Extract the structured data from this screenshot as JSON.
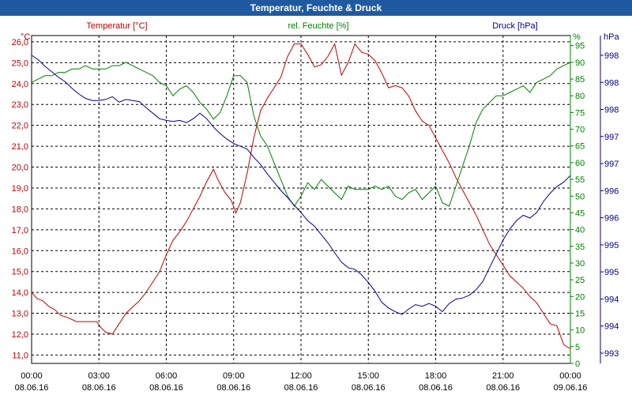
{
  "window": {
    "title": "Temperatur, Feuchte & Druck"
  },
  "colors": {
    "temperature": "#c00000",
    "humidity": "#008000",
    "pressure": "#000090",
    "titlebar": "#1f5aa0"
  },
  "chart_data": {
    "type": "line",
    "title": "Temperatur, Feuchte & Druck",
    "x_ticks": [
      {
        "time": "00:00",
        "date": "08.06.16"
      },
      {
        "time": "03:00",
        "date": "08.06.16"
      },
      {
        "time": "06:00",
        "date": "08.06.16"
      },
      {
        "time": "09:00",
        "date": "08.06.16"
      },
      {
        "time": "12:00",
        "date": "08.06.16"
      },
      {
        "time": "15:00",
        "date": "08.06.16"
      },
      {
        "time": "18:00",
        "date": "08.06.16"
      },
      {
        "time": "21:00",
        "date": "08.06.16"
      },
      {
        "time": "00:00",
        "date": "09.06.16"
      }
    ],
    "xlim": [
      0,
      24
    ],
    "axes": {
      "temperature": {
        "label": "Temperatur [°C]",
        "unit": "°C",
        "ylim": [
          10.6,
          26.3
        ],
        "ticks": [
          "11,0",
          "12,0",
          "13,0",
          "14,0",
          "15,0",
          "16,0",
          "17,0",
          "18,0",
          "19,0",
          "20,0",
          "21,0",
          "22,0",
          "23,0",
          "24,0",
          "25,0",
          "26,0"
        ]
      },
      "humidity": {
        "label": "rel. Feuchte [%]",
        "unit": "%",
        "ylim": [
          0,
          98
        ],
        "ticks": [
          "0",
          "5",
          "10",
          "15",
          "20",
          "25",
          "30",
          "35",
          "40",
          "45",
          "50",
          "55",
          "60",
          "65",
          "70",
          "75",
          "80",
          "85",
          "90",
          "95"
        ]
      },
      "pressure": {
        "label": "Druck [hPa]",
        "unit": "hPa",
        "ticks": [
          "993",
          "994",
          "994",
          "995",
          "995",
          "996",
          "996",
          "997",
          "997",
          "998",
          "998",
          "998"
        ]
      }
    },
    "series": [
      {
        "name": "Temperatur",
        "axis": "temperature",
        "x": [
          0,
          0.25,
          0.5,
          0.8,
          1.0,
          1.3,
          1.6,
          2.0,
          2.3,
          2.6,
          2.9,
          3.1,
          3.3,
          3.6,
          3.9,
          4.2,
          4.5,
          4.8,
          5.1,
          5.4,
          5.7,
          6.0,
          6.3,
          6.6,
          6.9,
          7.2,
          7.5,
          7.8,
          8.1,
          8.3,
          8.6,
          8.9,
          9.1,
          9.3,
          9.6,
          9.9,
          10.2,
          10.5,
          10.8,
          11.1,
          11.4,
          11.7,
          12.0,
          12.3,
          12.6,
          12.9,
          13.2,
          13.5,
          13.8,
          14.1,
          14.4,
          14.7,
          15.0,
          15.3,
          15.6,
          15.9,
          16.2,
          16.5,
          16.8,
          17.1,
          17.4,
          17.7,
          18.0,
          18.3,
          18.6,
          18.9,
          19.2,
          19.5,
          19.8,
          20.1,
          20.4,
          20.7,
          21.0,
          21.3,
          21.6,
          21.9,
          22.2,
          22.5,
          22.8,
          23.1,
          23.4,
          23.7,
          24.0
        ],
        "values": [
          14.0,
          13.7,
          13.6,
          13.3,
          13.2,
          12.9,
          12.8,
          12.6,
          12.6,
          12.6,
          12.6,
          12.3,
          12.1,
          12.0,
          12.5,
          13.0,
          13.3,
          13.6,
          14.0,
          14.5,
          15.0,
          15.8,
          16.5,
          16.9,
          17.4,
          18.0,
          18.6,
          19.3,
          19.9,
          19.4,
          18.8,
          18.4,
          17.8,
          18.3,
          19.7,
          21.4,
          22.7,
          23.3,
          23.8,
          24.3,
          25.3,
          25.9,
          25.9,
          25.4,
          24.8,
          24.9,
          25.3,
          25.9,
          24.4,
          25.0,
          25.9,
          25.5,
          25.4,
          25.1,
          24.5,
          23.8,
          23.9,
          23.8,
          23.4,
          22.7,
          22.2,
          22.0,
          21.4,
          20.8,
          20.2,
          19.5,
          18.9,
          18.3,
          17.7,
          17.0,
          16.3,
          15.8,
          15.3,
          14.8,
          14.5,
          14.2,
          13.8,
          13.5,
          13.0,
          12.5,
          12.4,
          11.5,
          11.3
        ]
      },
      {
        "name": "rel. Feuchte",
        "axis": "humidity",
        "x": [
          0,
          0.3,
          0.6,
          0.9,
          1.2,
          1.5,
          1.8,
          2.1,
          2.4,
          2.7,
          3.0,
          3.3,
          3.6,
          3.9,
          4.2,
          4.5,
          4.8,
          5.1,
          5.4,
          5.7,
          6.0,
          6.3,
          6.6,
          6.9,
          7.2,
          7.5,
          7.8,
          8.1,
          8.4,
          8.7,
          9.0,
          9.3,
          9.6,
          9.9,
          10.2,
          10.5,
          10.8,
          11.1,
          11.4,
          11.7,
          12.0,
          12.3,
          12.6,
          12.9,
          13.2,
          13.5,
          13.8,
          14.1,
          14.4,
          14.7,
          15.0,
          15.3,
          15.6,
          15.9,
          16.2,
          16.5,
          16.8,
          17.1,
          17.4,
          17.7,
          18.0,
          18.3,
          18.6,
          18.9,
          19.2,
          19.5,
          19.8,
          20.1,
          20.4,
          20.7,
          21.0,
          21.3,
          21.6,
          21.9,
          22.2,
          22.5,
          22.8,
          23.1,
          23.4,
          23.7,
          24.0
        ],
        "values": [
          84,
          85,
          86,
          86,
          87,
          87,
          88,
          88,
          89,
          88,
          88,
          88,
          89,
          89,
          90,
          89,
          88,
          87,
          86,
          84,
          83,
          80,
          82,
          83,
          81,
          78,
          76,
          73,
          75,
          80,
          86,
          86,
          84,
          74,
          68,
          65,
          60,
          55,
          50,
          47,
          50,
          54,
          52,
          55,
          53,
          51,
          49,
          53,
          52,
          52,
          52,
          53,
          52,
          53,
          50,
          49,
          51,
          52,
          49,
          51,
          53,
          48,
          47,
          53,
          59,
          65,
          72,
          76,
          78,
          80,
          80,
          81,
          82,
          83,
          81,
          84,
          85,
          86,
          88,
          89,
          90
        ]
      },
      {
        "name": "Druck",
        "axis": "pressure",
        "x": [
          0,
          0.3,
          0.6,
          0.9,
          1.2,
          1.5,
          1.8,
          2.1,
          2.4,
          2.7,
          3.0,
          3.3,
          3.6,
          3.9,
          4.2,
          4.5,
          4.8,
          5.1,
          5.4,
          5.7,
          6.0,
          6.3,
          6.6,
          6.9,
          7.2,
          7.5,
          7.8,
          8.1,
          8.4,
          8.7,
          9.0,
          9.3,
          9.6,
          9.9,
          10.2,
          10.5,
          10.8,
          11.1,
          11.4,
          11.7,
          12.0,
          12.3,
          12.6,
          12.9,
          13.2,
          13.5,
          13.8,
          14.1,
          14.4,
          14.7,
          15.0,
          15.3,
          15.6,
          15.9,
          16.2,
          16.5,
          16.8,
          17.1,
          17.4,
          17.7,
          18.0,
          18.3,
          18.6,
          18.9,
          19.2,
          19.5,
          19.8,
          20.1,
          20.4,
          20.7,
          21.0,
          21.3,
          21.6,
          21.9,
          22.2,
          22.5,
          22.8,
          23.1,
          23.4,
          23.7,
          24.0
        ],
        "values": [
          998.4,
          998.32,
          998.2,
          998.1,
          998.0,
          997.92,
          997.8,
          997.7,
          997.62,
          997.58,
          997.58,
          997.6,
          997.65,
          997.55,
          997.6,
          997.58,
          997.56,
          997.45,
          997.35,
          997.25,
          997.22,
          997.2,
          997.22,
          997.18,
          997.25,
          997.35,
          997.25,
          997.1,
          996.98,
          996.88,
          996.8,
          996.75,
          996.7,
          996.55,
          996.42,
          996.25,
          996.1,
          995.95,
          995.82,
          995.68,
          995.55,
          995.4,
          995.3,
          995.15,
          995.0,
          994.82,
          994.65,
          994.55,
          994.52,
          994.42,
          994.28,
          994.12,
          993.92,
          993.82,
          993.75,
          993.7,
          993.8,
          993.88,
          993.85,
          993.9,
          993.85,
          993.75,
          993.9,
          993.98,
          994.0,
          994.05,
          994.15,
          994.3,
          994.55,
          994.8,
          995.05,
          995.25,
          995.4,
          995.5,
          995.45,
          995.55,
          995.75,
          995.9,
          996.02,
          996.1,
          996.22
        ]
      }
    ]
  }
}
